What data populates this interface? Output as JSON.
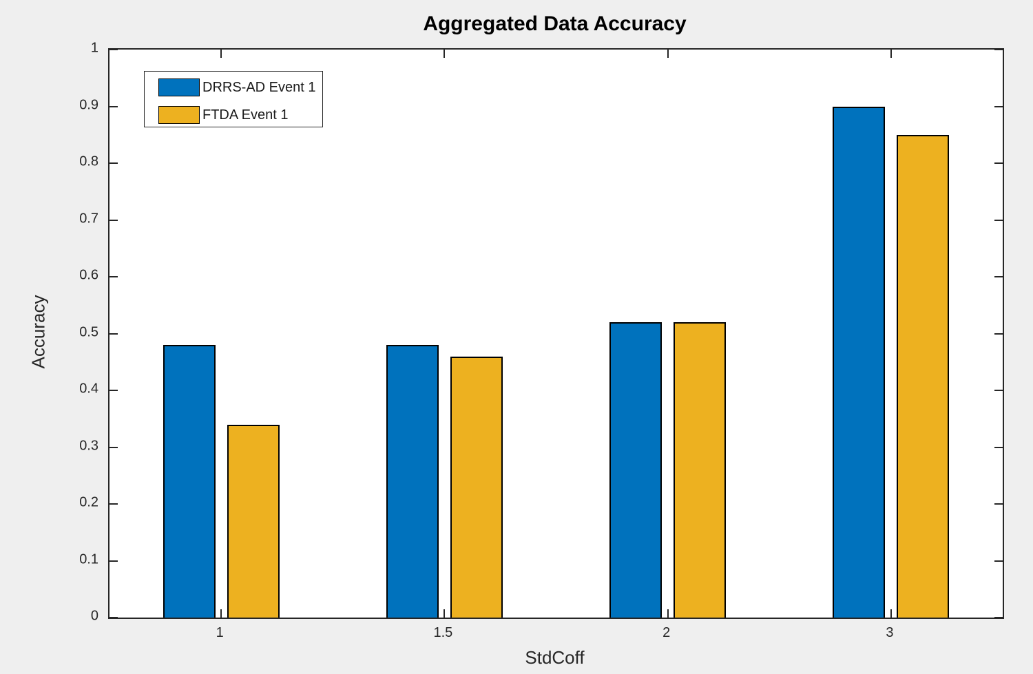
{
  "figure": {
    "background_color": "#efefef",
    "plot_background_color": "#ffffff",
    "axis_color": "#262626",
    "bar_edge_color": "#000000"
  },
  "chart_data": {
    "type": "bar",
    "title": "Aggregated Data Accuracy",
    "xlabel": "StdCoff",
    "ylabel": "Accuracy",
    "categories": [
      "1",
      "1.5",
      "2",
      "3"
    ],
    "series": [
      {
        "name": "DRRS-AD Event 1",
        "color": "#0072BD",
        "values": [
          0.48,
          0.48,
          0.52,
          0.9
        ]
      },
      {
        "name": "FTDA Event 1",
        "color": "#EDB120",
        "values": [
          0.34,
          0.46,
          0.52,
          0.85
        ]
      }
    ],
    "ylim": [
      0,
      1
    ],
    "yticks": [
      0,
      0.1,
      0.2,
      0.3,
      0.4,
      0.5,
      0.6,
      0.7,
      0.8,
      0.9,
      1
    ],
    "ytick_labels": [
      "0",
      "0.1",
      "0.2",
      "0.3",
      "0.4",
      "0.5",
      "0.6",
      "0.7",
      "0.8",
      "0.9",
      "1"
    ],
    "grid": false,
    "legend_position": "top-left"
  }
}
